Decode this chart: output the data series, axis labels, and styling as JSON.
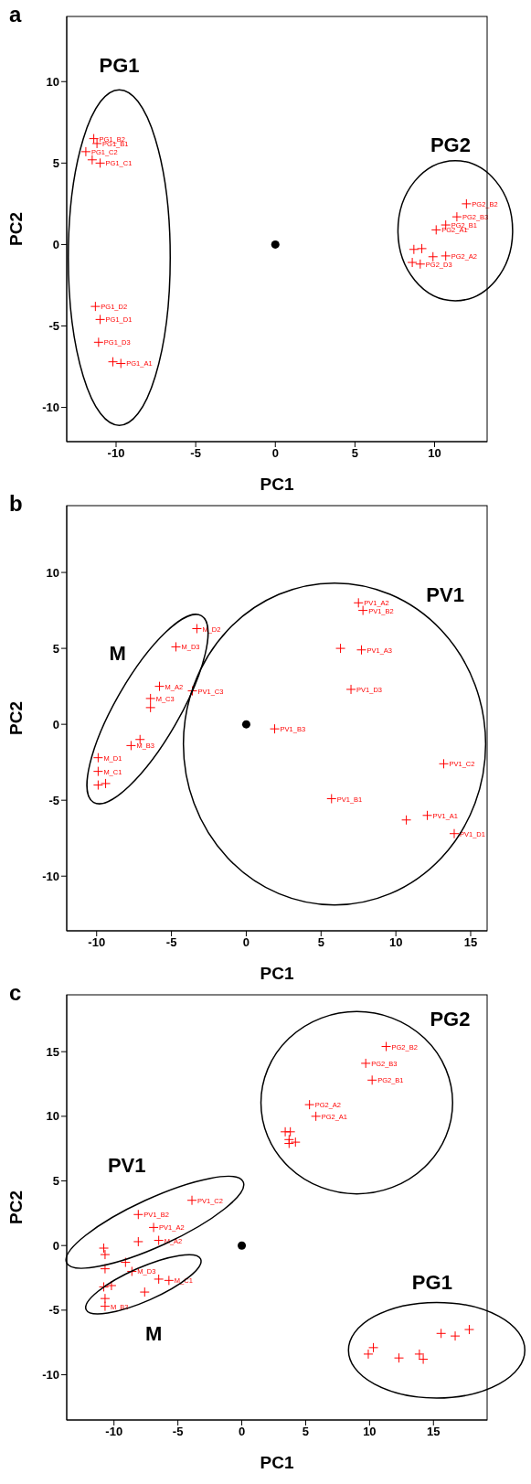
{
  "chart_data": [
    {
      "type": "scatter",
      "title": "a",
      "xlabel": "PC1",
      "ylabel": "PC2",
      "xlim": [
        -13.1,
        13.3
      ],
      "ylim": [
        -12.1,
        14.0
      ],
      "xticks": [
        -10,
        -5,
        0,
        5,
        10
      ],
      "yticks": [
        -10,
        -5,
        0,
        5,
        10
      ],
      "series": [
        {
          "color": "#ff0000",
          "marker": "cross",
          "x": [
            -11.4,
            -11.2,
            -11.9,
            -11.5,
            -11.0,
            -11.3,
            -11.0,
            -11.1,
            -10.2,
            -9.7,
            12.0,
            11.4,
            10.7,
            10.1,
            8.7,
            9.2,
            9.9,
            10.7,
            8.6,
            9.1
          ],
          "values": [
            6.5,
            6.2,
            5.7,
            5.2,
            5.0,
            -3.8,
            -4.6,
            -6.0,
            -7.2,
            -7.3,
            2.5,
            1.7,
            1.2,
            0.9,
            -0.3,
            -0.25,
            -0.75,
            -0.7,
            -1.1,
            -1.2
          ],
          "value_labels": [
            "PG1_B2",
            "PG1_B1",
            "PG1_C2",
            null,
            "PG1_C1",
            "PG1_D2",
            "PG1_D1",
            "PG1_D3",
            null,
            "PG1_A1",
            "PG2_B2",
            "PG2_B3",
            "PG2_B1",
            "PG2_A1",
            null,
            null,
            null,
            "PG2_A2",
            null,
            "PG2_D3"
          ]
        },
        {
          "color": "#000000",
          "marker": "circle",
          "x": [
            0
          ],
          "values": [
            0
          ]
        }
      ],
      "annotations": [
        "PG1",
        "PG2"
      ]
    },
    {
      "type": "scatter",
      "title": "b",
      "xlabel": "PC1",
      "ylabel": "PC2",
      "xlim": [
        -12.0,
        16.1
      ],
      "ylim": [
        -13.6,
        14.4
      ],
      "xticks": [
        -10,
        -5,
        0,
        5,
        10,
        15
      ],
      "yticks": [
        -10,
        -5,
        0,
        5,
        10
      ],
      "series": [
        {
          "color": "#ff0000",
          "marker": "cross",
          "x": [
            -3.3,
            -4.7,
            -5.8,
            -3.6,
            -6.4,
            -6.4,
            -7.1,
            -7.7,
            -9.9,
            -9.9,
            -9.9,
            -9.4,
            1.9,
            7.5,
            7.8,
            6.3,
            7.7,
            7.0,
            13.2,
            5.7,
            10.7,
            12.1,
            13.9
          ],
          "values": [
            6.3,
            5.1,
            2.5,
            2.2,
            1.7,
            1.1,
            -1.0,
            -1.4,
            -2.2,
            -3.1,
            -4.0,
            -3.9,
            -0.3,
            8.0,
            7.5,
            5.0,
            4.9,
            2.3,
            -2.6,
            -4.9,
            -6.3,
            -6.0,
            -7.2
          ],
          "value_labels": [
            "M_D2",
            "M_D3",
            "M_A2",
            "PV1_C3",
            "M_C3",
            null,
            null,
            "M_B3",
            "M_D1",
            "M_C1",
            null,
            null,
            "PV1_B3",
            "PV1_A2",
            "PV1_B2",
            null,
            "PV1_A3",
            "PV1_D3",
            "PV1_C2",
            "PV1_B1",
            null,
            "PV1_A1",
            "PV1_D1"
          ]
        },
        {
          "color": "#000000",
          "marker": "circle",
          "x": [
            0
          ],
          "values": [
            0
          ]
        }
      ],
      "annotations": [
        "M",
        "PV1"
      ]
    },
    {
      "type": "scatter",
      "title": "c",
      "xlabel": "PC1",
      "ylabel": "PC2",
      "xlim": [
        -13.7,
        19.2
      ],
      "ylim": [
        -13.5,
        19.4
      ],
      "xticks": [
        -10,
        -5,
        0,
        5,
        10,
        15
      ],
      "yticks": [
        -10,
        -5,
        0,
        5,
        10,
        15
      ],
      "series": [
        {
          "color": "#ff0000",
          "marker": "cross",
          "x": [
            11.3,
            9.7,
            10.2,
            5.3,
            5.8,
            3.4,
            3.8,
            3.7,
            3.7,
            4.2,
            -3.9,
            -8.1,
            -6.9,
            -6.5,
            -8.1,
            -10.8,
            -10.7,
            -10.7,
            -8.6,
            -9.1,
            -10.8,
            -10.2,
            -6.5,
            -5.7,
            -10.7,
            -10.7,
            -7.6,
            15.6,
            17.8,
            16.7,
            10.3,
            9.9,
            12.3,
            13.9,
            14.2
          ],
          "values": [
            15.4,
            14.1,
            12.8,
            10.9,
            10.0,
            8.8,
            8.8,
            8.2,
            7.9,
            8.0,
            3.5,
            2.4,
            1.4,
            0.4,
            0.3,
            -0.2,
            -0.7,
            -1.8,
            -2.0,
            -1.3,
            -3.2,
            -3.1,
            -2.6,
            -2.7,
            -4.1,
            -4.7,
            -3.6,
            -6.8,
            -6.5,
            -7.0,
            -7.9,
            -8.4,
            -8.7,
            -8.4,
            -8.8
          ],
          "value_labels": [
            "PG2_B2",
            "PG2_B3",
            "PG2_B1",
            "PG2_A2",
            "PG2_A1",
            null,
            null,
            null,
            null,
            null,
            "PV1_C2",
            "PV1_B2",
            "PV1_A2",
            "M_A2",
            null,
            null,
            null,
            null,
            "M_D3",
            null,
            null,
            null,
            null,
            "M_C1",
            null,
            "M_B3",
            null,
            null,
            null,
            null,
            null,
            null,
            null,
            null,
            null
          ]
        },
        {
          "color": "#000000",
          "marker": "circle",
          "x": [
            0
          ],
          "values": [
            0
          ]
        }
      ],
      "annotations": [
        "PV1",
        "M",
        "PG2",
        "PG1"
      ]
    }
  ]
}
